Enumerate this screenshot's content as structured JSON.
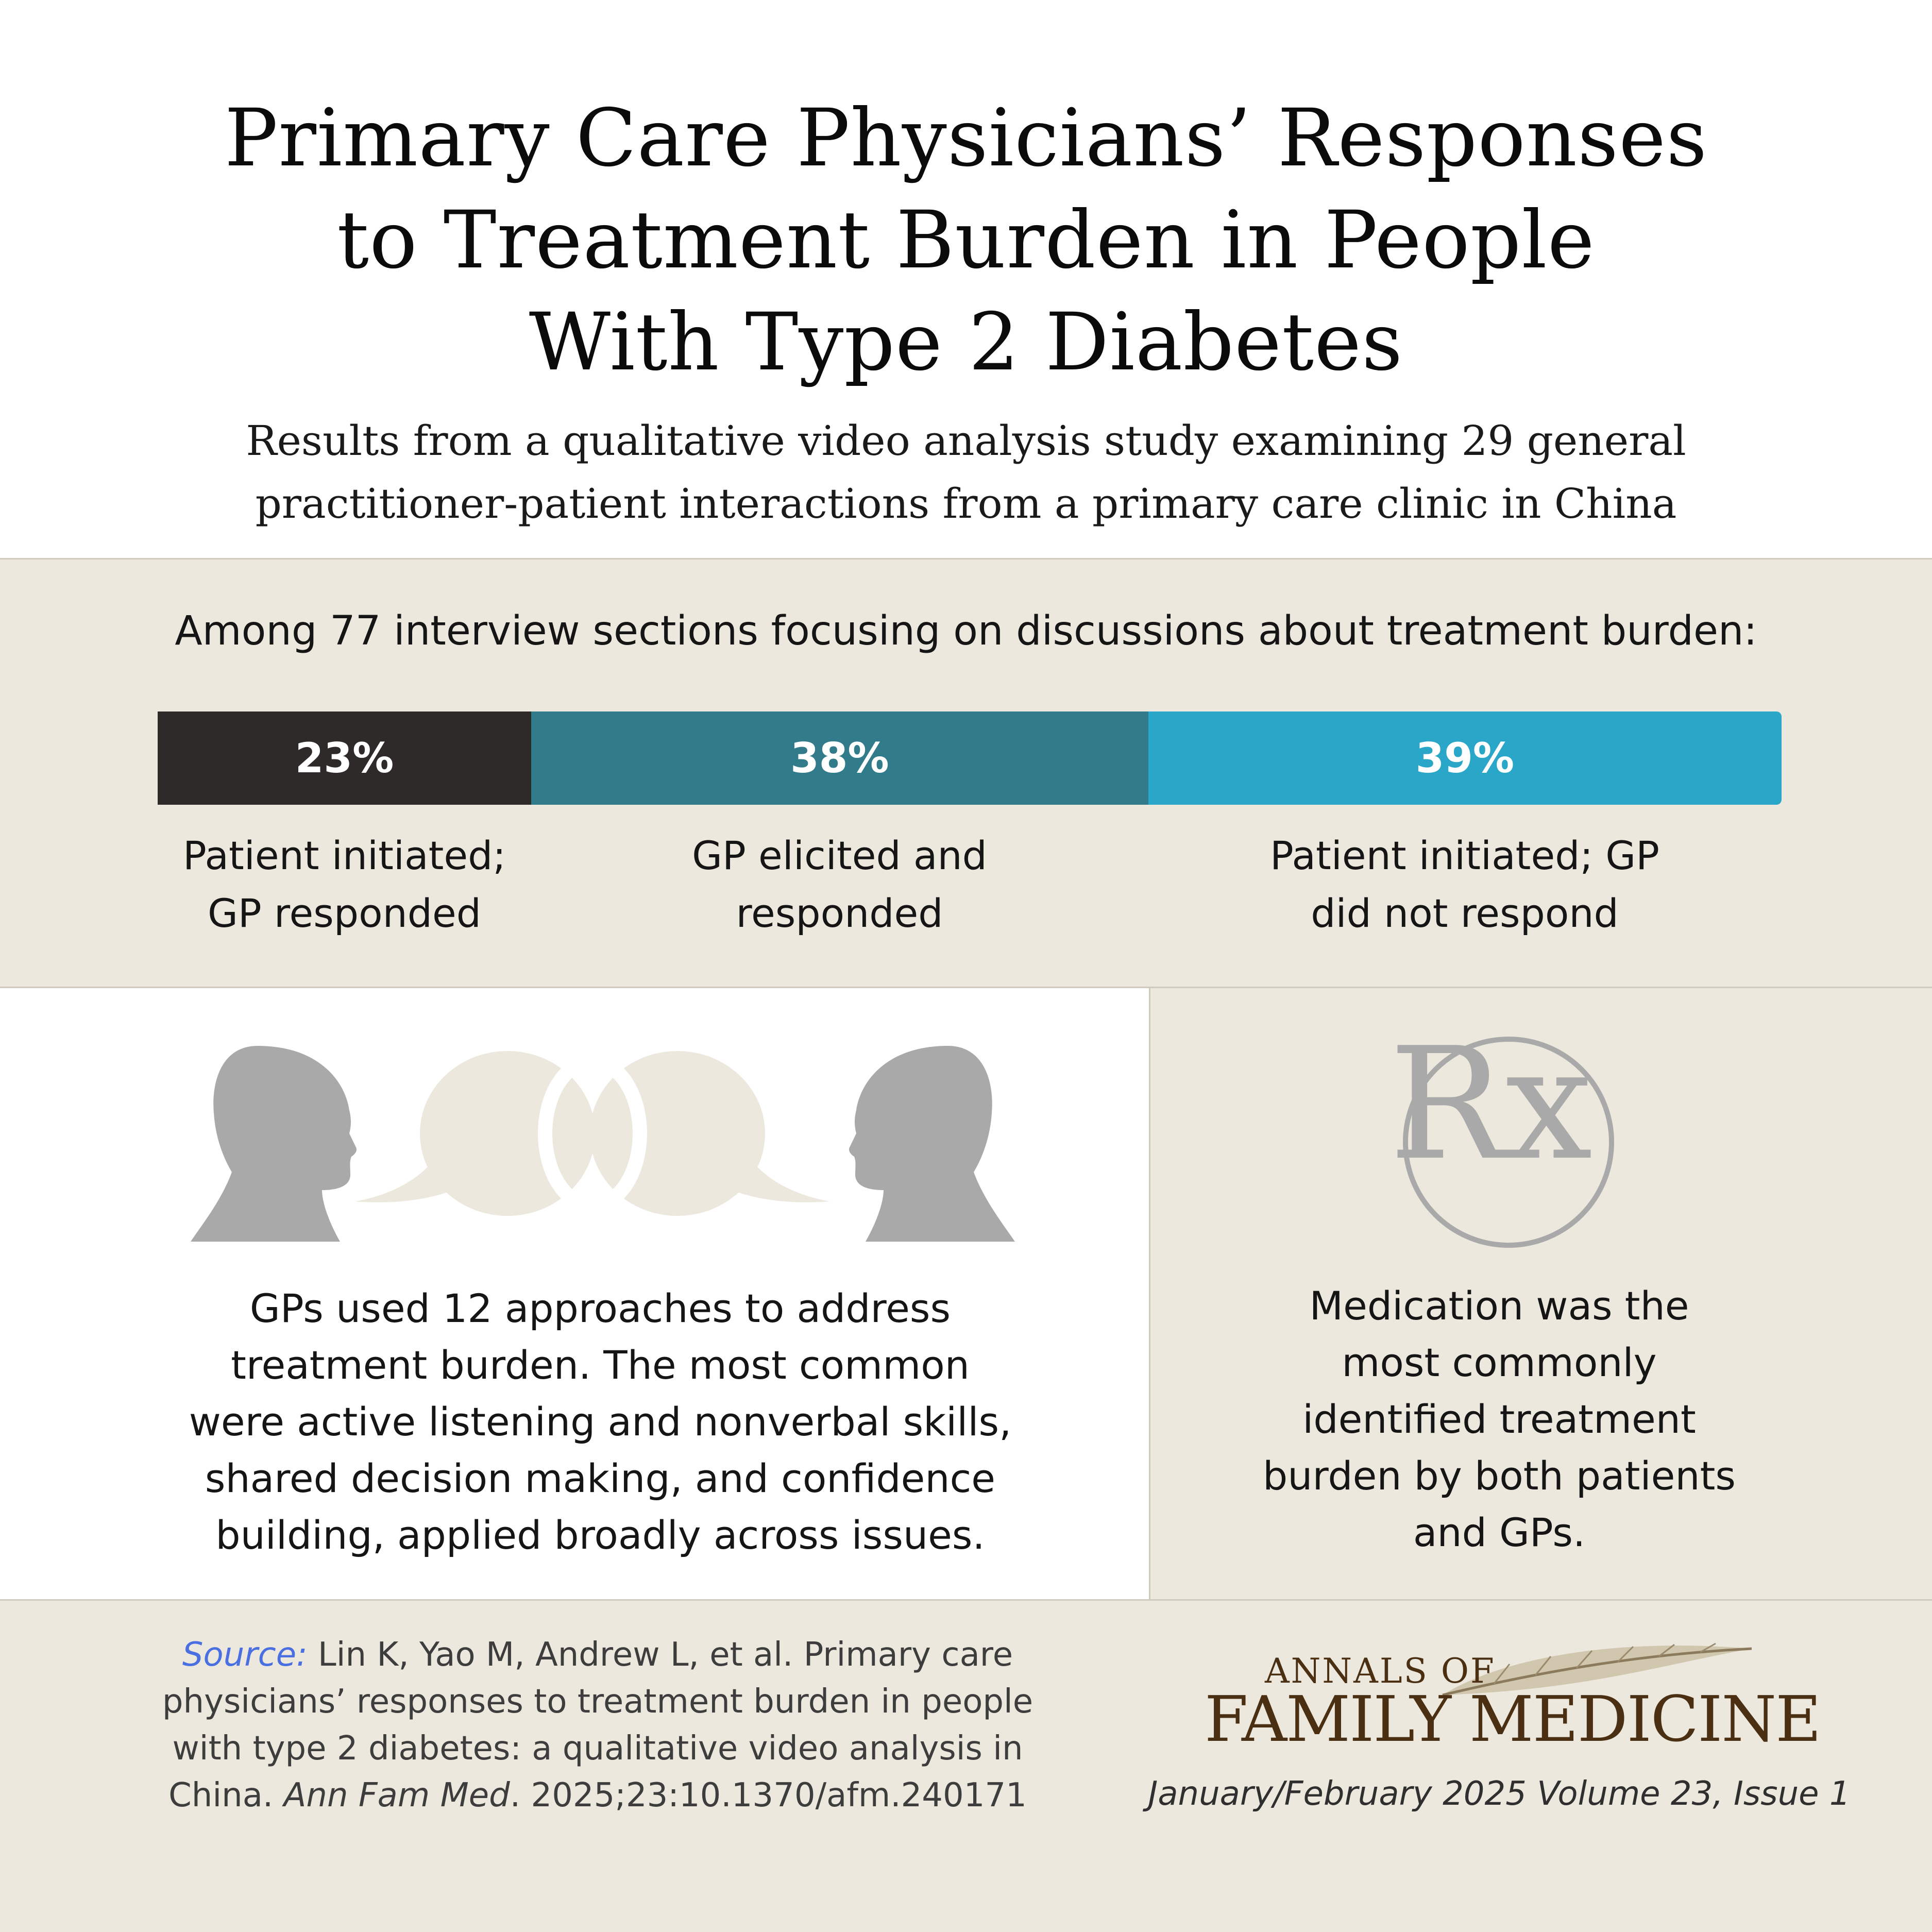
{
  "header": {
    "title_lines": [
      "Primary Care Physicians’ Responses",
      "to Treatment Burden in People",
      "With Type 2 Diabetes"
    ],
    "subtitle_lines": [
      "Results from a qualitative video analysis study examining 29 general",
      "practitioner-patient interactions from a primary care clinic in China"
    ]
  },
  "stats": {
    "intro": "Among 77 interview sections focusing on discussions about treatment burden:",
    "segments": [
      {
        "value": 23,
        "value_label": "23%",
        "label_lines": [
          "Patient initiated;",
          "GP responded"
        ],
        "color": "#2e2a2a"
      },
      {
        "value": 38,
        "value_label": "38%",
        "label_lines": [
          "GP elicited and",
          "responded"
        ],
        "color": "#327b8a"
      },
      {
        "value": 39,
        "value_label": "39%",
        "label_lines": [
          "Patient initiated; GP",
          "did not respond"
        ],
        "color": "#2aa7c8"
      }
    ]
  },
  "middle": {
    "approaches_lines": [
      "GPs used 12 approaches to address",
      "treatment burden. The most common",
      "were active listening and nonverbal skills,",
      "shared decision making, and confidence",
      "building, applied broadly across issues."
    ],
    "medication_lines": [
      "Medication was the",
      "most commonly",
      "identified treatment",
      "burden by both patients",
      "and GPs."
    ],
    "icons": [
      "two-heads-speech-bubbles-icon",
      "rx-icon"
    ],
    "rx_text": "Rx"
  },
  "footer": {
    "source_label": "Source:",
    "source_part1": " Lin K, Yao M, Andrew L, et al. Primary care physicians’ responses to treatment burden in people with type 2 diabetes: a qualitative video analysis in China. ",
    "source_journal": "Ann Fam Med",
    "source_part2": ". 2025;23:10.1370/afm.240171",
    "logo_line1": "ANNALS OF",
    "logo_line2": "FAMILY MEDICINE",
    "issue": "January/February 2025 Volume 23, Issue 1"
  },
  "colors": {
    "band": "#ece8dd",
    "icon_gray": "#a9a9a9",
    "bubble": "#ece8dd",
    "logo_brown": "#4a2f12"
  }
}
